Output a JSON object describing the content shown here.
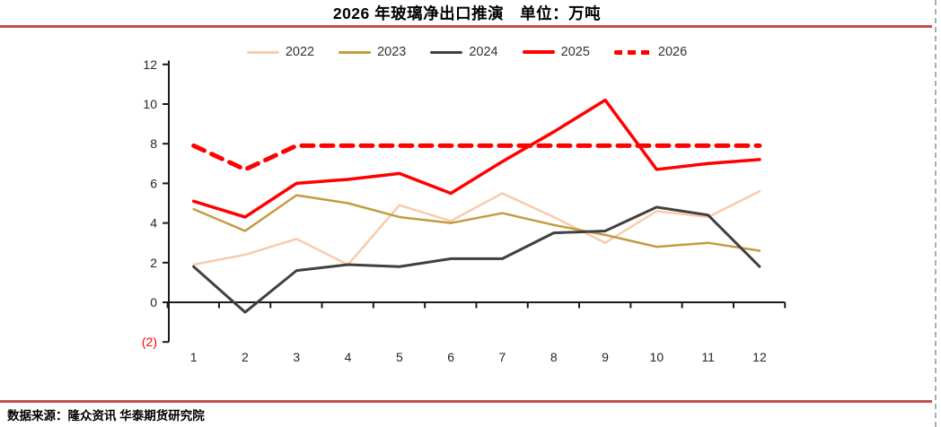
{
  "header": {
    "title": "2026 年玻璃净出口推演　单位：万吨"
  },
  "footer": {
    "source": "数据来源：隆众资讯 华泰期货研究院"
  },
  "colors": {
    "separator": "#C5504B",
    "axis": "#1a1a1a",
    "tick_text": "#262626",
    "negative_tick": "#FF0000"
  },
  "chart_data": {
    "type": "line",
    "title": "2026 年玻璃净出口推演　单位：万吨",
    "unit": "万吨",
    "xlabel": "",
    "ylabel": "",
    "grid": false,
    "legend_position": "top",
    "ylim": [
      -2,
      12
    ],
    "xticks": [
      "1",
      "2",
      "3",
      "4",
      "5",
      "6",
      "7",
      "8",
      "9",
      "10",
      "11",
      "12"
    ],
    "yticks": [
      {
        "value": 12,
        "label": "12"
      },
      {
        "value": 10,
        "label": "10"
      },
      {
        "value": 8,
        "label": "8"
      },
      {
        "value": 6,
        "label": "6"
      },
      {
        "value": 4,
        "label": "4"
      },
      {
        "value": 2,
        "label": "2"
      },
      {
        "value": 0,
        "label": "0"
      },
      {
        "value": -2,
        "label": "(2)",
        "negative": true
      }
    ],
    "series": [
      {
        "name": "2022",
        "color": "#F8CBAD",
        "width": 2.5,
        "dash": null,
        "values": [
          1.9,
          2.4,
          3.2,
          1.9,
          4.9,
          4.1,
          5.5,
          4.3,
          3.0,
          4.6,
          4.3,
          5.6
        ]
      },
      {
        "name": "2023",
        "color": "#C49B3F",
        "width": 2.5,
        "dash": null,
        "values": [
          4.7,
          3.6,
          5.4,
          5.0,
          4.3,
          4.0,
          4.5,
          3.9,
          3.4,
          2.8,
          3.0,
          2.6
        ]
      },
      {
        "name": "2024",
        "color": "#404040",
        "width": 3,
        "dash": null,
        "values": [
          1.8,
          -0.5,
          1.6,
          1.9,
          1.8,
          2.2,
          2.2,
          3.5,
          3.6,
          4.8,
          4.4,
          1.8
        ]
      },
      {
        "name": "2025",
        "color": "#FF0000",
        "width": 3.5,
        "dash": null,
        "values": [
          5.1,
          4.3,
          6.0,
          6.2,
          6.5,
          5.5,
          7.1,
          8.6,
          10.2,
          6.7,
          7.0,
          7.2
        ]
      },
      {
        "name": "2026",
        "color": "#FF0000",
        "width": 5,
        "dash": "13 9",
        "values": [
          7.9,
          6.7,
          7.9,
          7.9,
          7.9,
          7.9,
          7.9,
          7.9,
          7.9,
          7.9,
          7.9,
          7.9
        ]
      }
    ]
  }
}
